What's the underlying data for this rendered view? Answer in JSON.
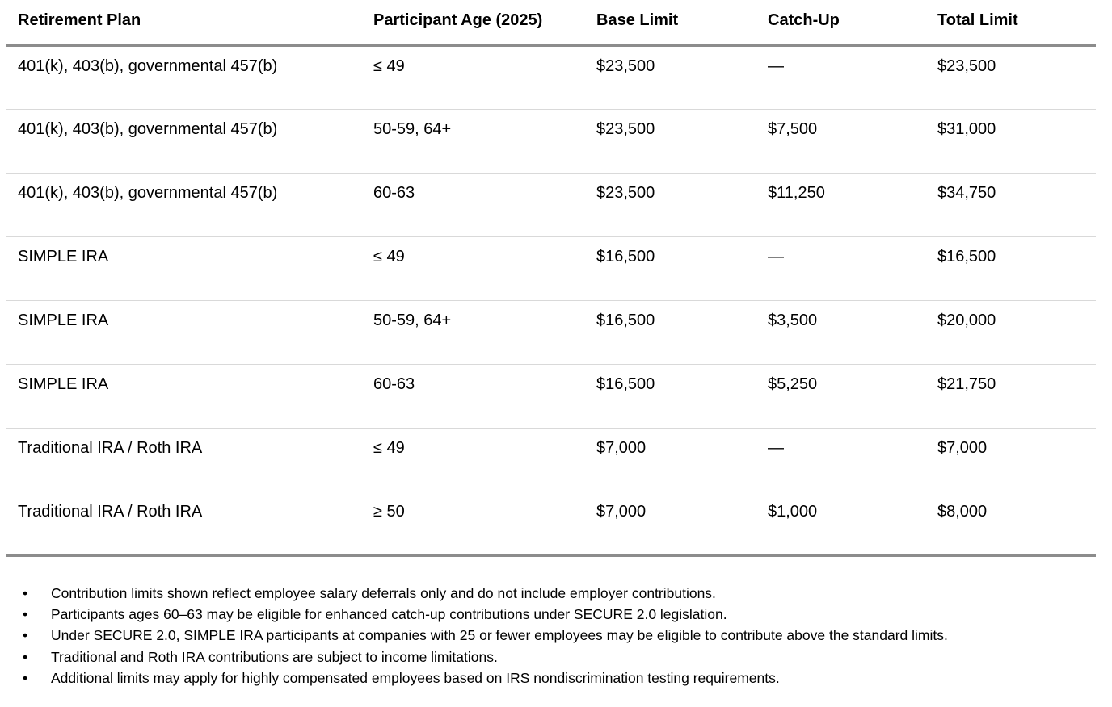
{
  "table": {
    "columns": [
      "Retirement Plan",
      "Participant Age (2025)",
      "Base Limit",
      "Catch-Up",
      "Total Limit"
    ],
    "rows": [
      [
        "401(k), 403(b), governmental 457(b)",
        "≤ 49",
        "$23,500",
        "—",
        "$23,500"
      ],
      [
        "401(k), 403(b), governmental 457(b)",
        "50-59, 64+",
        "$23,500",
        "$7,500",
        "$31,000"
      ],
      [
        "401(k), 403(b), governmental 457(b)",
        "60-63",
        "$23,500",
        "$11,250",
        "$34,750"
      ],
      [
        "SIMPLE IRA",
        "≤ 49",
        "$16,500",
        "—",
        "$16,500"
      ],
      [
        "SIMPLE IRA",
        "50-59, 64+",
        "$16,500",
        "$3,500",
        "$20,000"
      ],
      [
        "SIMPLE IRA",
        "60-63",
        "$16,500",
        "$5,250",
        "$21,750"
      ],
      [
        "Traditional IRA / Roth IRA",
        "≤ 49",
        "$7,000",
        "—",
        "$7,000"
      ],
      [
        "Traditional IRA / Roth IRA",
        "≥ 50",
        "$7,000",
        "$1,000",
        "$8,000"
      ]
    ]
  },
  "notes": [
    "Contribution limits shown reflect employee salary deferrals only and do not include employer contributions.",
    "Participants ages 60–63 may be eligible for enhanced catch-up contributions under SECURE 2.0 legislation.",
    "Under SECURE 2.0, SIMPLE IRA participants at companies with 25 or fewer employees may be eligible to contribute above the standard limits.",
    "Traditional and Roth IRA contributions are subject to income limitations.",
    "Additional limits may apply for highly compensated employees based on IRS nondiscrimination testing requirements."
  ],
  "bullet_glyph": "•",
  "colors": {
    "text": "#000000",
    "background": "#ffffff",
    "border_heavy": "#8c8c8c",
    "border_light": "#d9d9d9"
  }
}
